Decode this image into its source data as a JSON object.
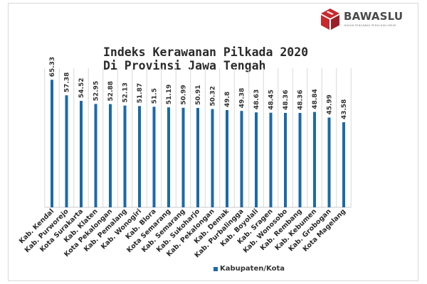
{
  "brand": {
    "name": "BAWASLU",
    "tagline": "BADAN PENGAWAS PEMILIHAN UMUM",
    "colors": {
      "red": "#c7282e",
      "dark": "#4a4a4a"
    }
  },
  "chart_data": {
    "type": "bar",
    "title": "Indeks Kerawanan Pilkada 2020",
    "subtitle": "Di Provinsi Jawa Tengah",
    "categories": [
      "Kab. Kendal",
      "Kab. Purworejo",
      "Kota Surakarta",
      "Kab. Klaten",
      "Kota Pekalongan",
      "Kab. Pemalang",
      "Kab. Wonogiri",
      "Kab. Blora",
      "Kota Semarang",
      "Kab. Semarang",
      "Kab. Sukoharjo",
      "Kab. Pekalongan",
      "Kab. Demak",
      "Kab. Purbalingga",
      "Kab. Boyolali",
      "Kab. Sragen",
      "Kab. Wonosobo",
      "Kab. Rembang",
      "Kab. Kebumen",
      "Kab. Grobogan",
      "Kota Magelang"
    ],
    "series": [
      {
        "name": "Kabupaten/Kota",
        "values": [
          65.33,
          57.38,
          54.52,
          52.95,
          52.88,
          52.13,
          51.87,
          51.5,
          51.19,
          50.99,
          50.91,
          50.32,
          49.8,
          49.38,
          48.63,
          48.45,
          48.36,
          48.36,
          48.84,
          45.99,
          43.58
        ]
      }
    ],
    "value_labels": [
      "65.33",
      "57.38",
      "54.52",
      "52.95",
      "52.88",
      "52.13",
      "51.87",
      "51.5",
      "51.19",
      "50.99",
      "50.91",
      "50.32",
      "49.8",
      "49.38",
      "48.63",
      "48.45",
      "48.36",
      "48.36",
      "48.84",
      "45.99",
      "43.58"
    ],
    "legend_label": "Kabupaten/Kota",
    "legend_position": "bottom",
    "ylim": [
      0,
      70
    ],
    "grid": "vertical",
    "colors": {
      "bar": "#1b6aa8",
      "grid": "#d9d9d9"
    }
  }
}
